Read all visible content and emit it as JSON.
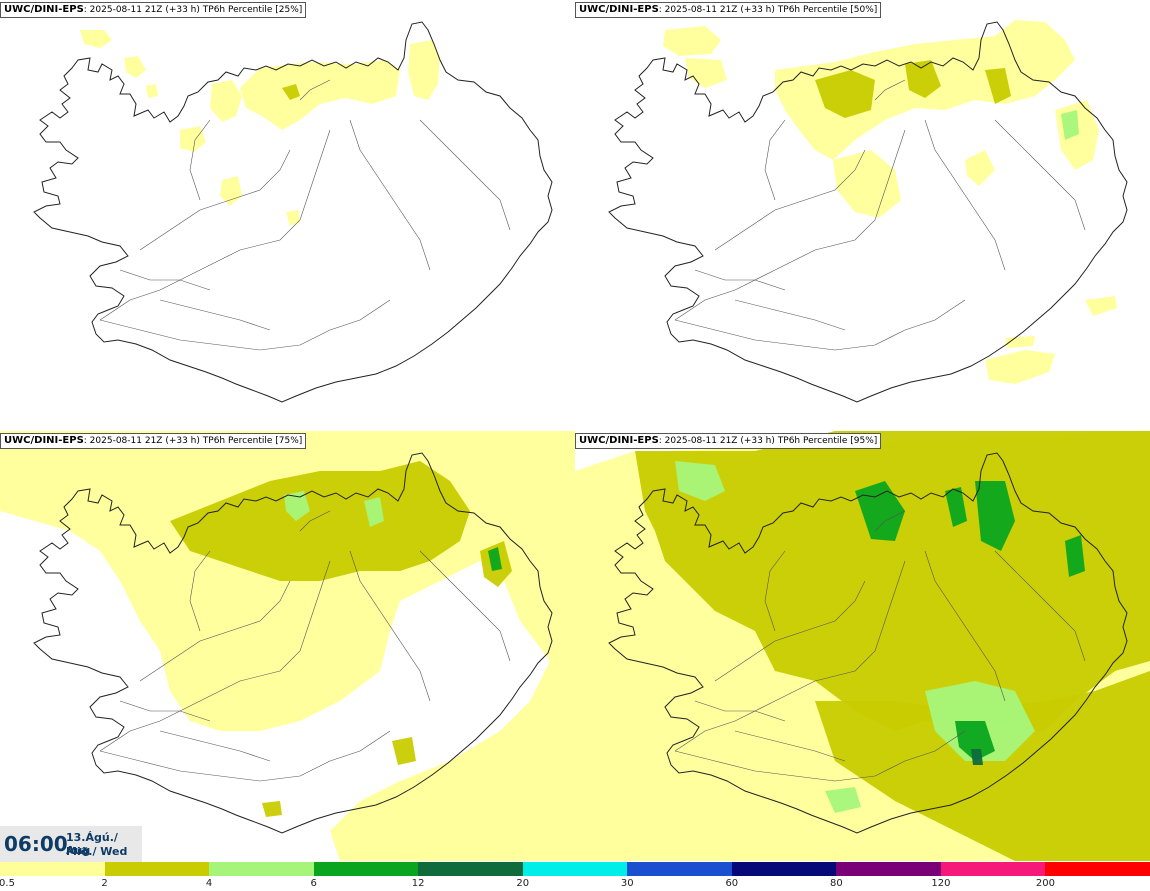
{
  "panels": [
    {
      "id": "p25",
      "title_source": "UWC/DINI-EPS",
      "title_run": "2025-08-11 21Z (+33 h)",
      "title_field": "TP6h Percentile [25%]"
    },
    {
      "id": "p50",
      "title_source": "UWC/DINI-EPS",
      "title_run": "2025-08-11 21Z (+33 h)",
      "title_field": "TP6h Percentile [50%]"
    },
    {
      "id": "p75",
      "title_source": "UWC/DINI-EPS",
      "title_run": "2025-08-11 21Z (+33 h)",
      "title_field": "TP6h Percentile [75%]"
    },
    {
      "id": "p95",
      "title_source": "UWC/DINI-EPS",
      "title_run": "2025-08-11 21Z (+33 h)",
      "title_field": "TP6h Percentile [95%]"
    }
  ],
  "valid_time": {
    "time": "06:00",
    "date": "13.Ágú./ Aug",
    "weekday": "Mið./ Wed"
  },
  "legend": {
    "labels": [
      "0.5",
      "2",
      "4",
      "6",
      "12",
      "20",
      "30",
      "60",
      "80",
      "120",
      "200"
    ],
    "colors": [
      "#ffff99",
      "#c8cc00",
      "#a6f57a",
      "#0aa51e",
      "#0f6b3c",
      "#00eee8",
      "#1a4fd0",
      "#050a78",
      "#7a0078",
      "#f5197a",
      "#ff0000"
    ]
  }
}
